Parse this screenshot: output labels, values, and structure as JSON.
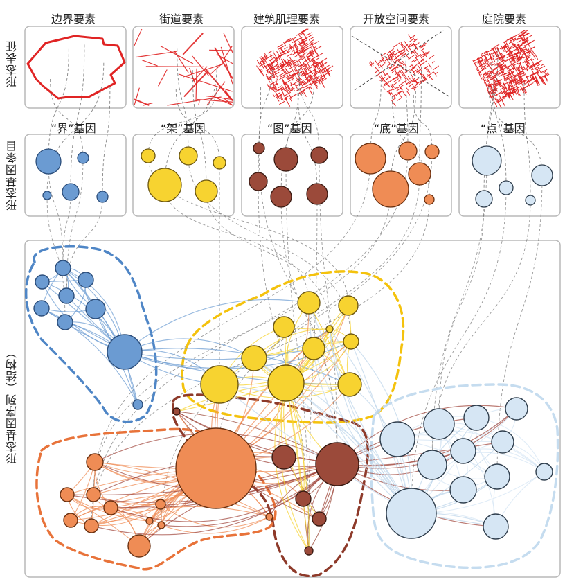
{
  "rows": {
    "representation": "形态表征",
    "gene_entries": "形态基因条目",
    "gene_sequence": "形态基因序列（结构）"
  },
  "elements": [
    {
      "key": "boundary",
      "title": "边界要素",
      "gene": "“界”基因",
      "color": "#e02424"
    },
    {
      "key": "street",
      "title": "街道要素",
      "gene": "“架”基因",
      "color": "#e02424"
    },
    {
      "key": "building",
      "title": "建筑肌理要素",
      "gene": "“图”基因",
      "color": "#e02424"
    },
    {
      "key": "open",
      "title": "开放空间要素",
      "gene": "“底”基因",
      "color": "#e02424"
    },
    {
      "key": "courtyard",
      "title": "庭院要素",
      "gene": "“点”基因",
      "color": "#e02424"
    }
  ],
  "gene_groups": [
    {
      "key": "jie",
      "fill": "#6b9bd2",
      "stroke": "#2b4d7a"
    },
    {
      "key": "jia",
      "fill": "#f7d330",
      "stroke": "#6a5510"
    },
    {
      "key": "tu",
      "fill": "#9b4a3a",
      "stroke": "#3a1a12"
    },
    {
      "key": "di",
      "fill": "#ef8c55",
      "stroke": "#6a3010"
    },
    {
      "key": "dian",
      "fill": "#d6e6f4",
      "stroke": "#2e3d4c"
    }
  ],
  "hull_colors": {
    "jie": "#4f86c6",
    "jia": "#f4c20d",
    "tu": "#8e3a2a",
    "di": "#e8733a",
    "dian": "#c5dcef"
  }
}
